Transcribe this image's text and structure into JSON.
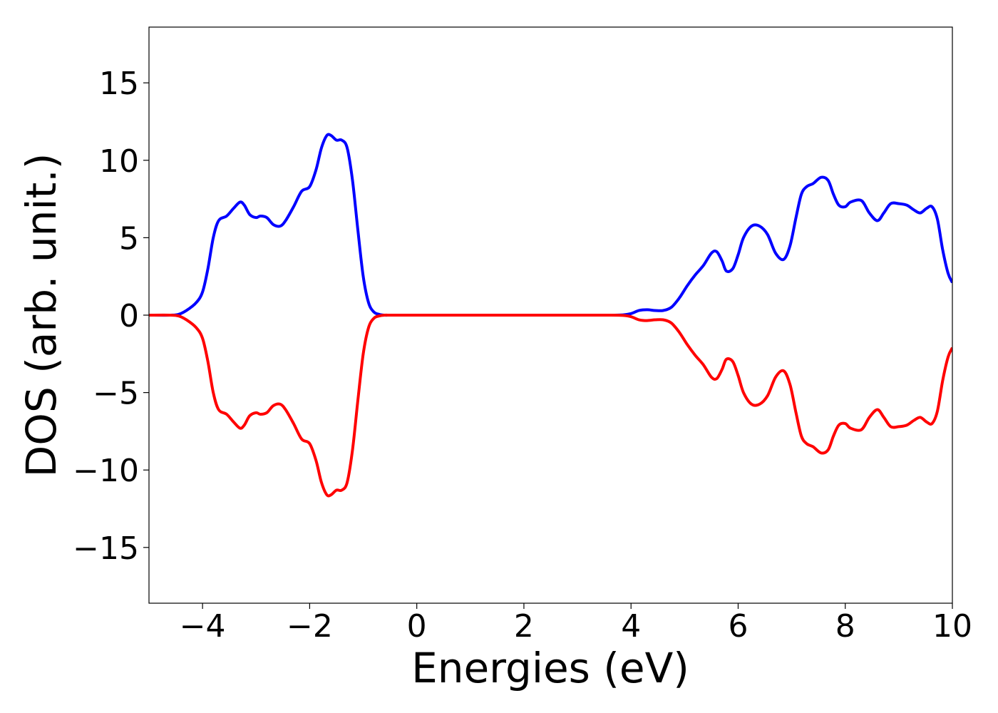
{
  "chart_data": {
    "type": "line",
    "title": "",
    "xlabel": "Energies (eV)",
    "ylabel": "DOS (arb. unit.)",
    "xlim": [
      -5,
      10
    ],
    "ylim": [
      -18.6,
      18.6
    ],
    "grid": false,
    "legend": "none",
    "xticks": [
      {
        "value": -4,
        "label": "−4"
      },
      {
        "value": -2,
        "label": "−2"
      },
      {
        "value": 0,
        "label": "0"
      },
      {
        "value": 2,
        "label": "2"
      },
      {
        "value": 4,
        "label": "4"
      },
      {
        "value": 6,
        "label": "6"
      },
      {
        "value": 8,
        "label": "8"
      },
      {
        "value": 10,
        "label": "10"
      }
    ],
    "yticks": [
      {
        "value": 15,
        "label": "15"
      },
      {
        "value": 10,
        "label": "10"
      },
      {
        "value": 5,
        "label": "5"
      },
      {
        "value": 0,
        "label": "0"
      },
      {
        "value": -5,
        "label": "−5"
      },
      {
        "value": -10,
        "label": "−10"
      },
      {
        "value": -15,
        "label": "−15"
      }
    ],
    "series": [
      {
        "color": "#0000ff",
        "x": [
          -5.0,
          -4.6,
          -4.45,
          -4.3,
          -4.12,
          -4.0,
          -3.9,
          -3.8,
          -3.7,
          -3.55,
          -3.42,
          -3.3,
          -3.22,
          -3.12,
          -3.0,
          -2.92,
          -2.8,
          -2.68,
          -2.55,
          -2.45,
          -2.3,
          -2.15,
          -2.0,
          -1.88,
          -1.78,
          -1.68,
          -1.6,
          -1.5,
          -1.4,
          -1.3,
          -1.2,
          -1.1,
          -1.0,
          -0.9,
          -0.8,
          -0.7,
          -0.6,
          -0.5,
          -0.3,
          0.0,
          1.0,
          2.0,
          3.0,
          3.6,
          3.85,
          4.0,
          4.15,
          4.3,
          4.45,
          4.6,
          4.75,
          4.9,
          5.05,
          5.2,
          5.35,
          5.5,
          5.6,
          5.7,
          5.78,
          5.9,
          6.0,
          6.1,
          6.25,
          6.4,
          6.55,
          6.7,
          6.85,
          6.97,
          7.08,
          7.18,
          7.28,
          7.4,
          7.55,
          7.68,
          7.78,
          7.88,
          8.0,
          8.1,
          8.3,
          8.45,
          8.6,
          8.72,
          8.85,
          9.0,
          9.15,
          9.28,
          9.4,
          9.52,
          9.62,
          9.72,
          9.82,
          9.92,
          10.0
        ],
        "y": [
          0.0,
          0.0,
          0.05,
          0.3,
          0.8,
          1.5,
          3.0,
          5.0,
          6.1,
          6.4,
          6.9,
          7.3,
          7.1,
          6.5,
          6.3,
          6.4,
          6.3,
          5.85,
          5.75,
          6.1,
          7.0,
          8.0,
          8.3,
          9.4,
          10.8,
          11.6,
          11.6,
          11.3,
          11.3,
          10.8,
          8.7,
          5.5,
          2.5,
          0.8,
          0.2,
          0.05,
          0.0,
          0.0,
          0.0,
          0.0,
          0.0,
          0.0,
          0.0,
          0.0,
          0.02,
          0.1,
          0.3,
          0.35,
          0.3,
          0.3,
          0.5,
          1.1,
          1.9,
          2.6,
          3.2,
          4.0,
          4.1,
          3.5,
          2.85,
          3.0,
          3.9,
          5.0,
          5.75,
          5.75,
          5.2,
          4.0,
          3.6,
          4.5,
          6.3,
          7.8,
          8.3,
          8.5,
          8.9,
          8.7,
          7.8,
          7.1,
          7.0,
          7.3,
          7.4,
          6.6,
          6.1,
          6.6,
          7.2,
          7.2,
          7.1,
          6.8,
          6.6,
          6.9,
          7.0,
          6.2,
          4.2,
          2.7,
          2.1
        ]
      },
      {
        "color": "#ff0000",
        "x": [
          -5.0,
          -4.6,
          -4.45,
          -4.3,
          -4.12,
          -4.0,
          -3.9,
          -3.8,
          -3.7,
          -3.55,
          -3.42,
          -3.3,
          -3.22,
          -3.12,
          -3.0,
          -2.92,
          -2.8,
          -2.68,
          -2.55,
          -2.45,
          -2.3,
          -2.15,
          -2.0,
          -1.88,
          -1.78,
          -1.68,
          -1.6,
          -1.5,
          -1.4,
          -1.3,
          -1.2,
          -1.1,
          -1.0,
          -0.9,
          -0.8,
          -0.7,
          -0.6,
          -0.5,
          -0.3,
          0.0,
          1.0,
          2.0,
          3.0,
          3.6,
          3.85,
          4.0,
          4.15,
          4.3,
          4.45,
          4.6,
          4.75,
          4.9,
          5.05,
          5.2,
          5.35,
          5.5,
          5.6,
          5.7,
          5.78,
          5.9,
          6.0,
          6.1,
          6.25,
          6.4,
          6.55,
          6.7,
          6.85,
          6.97,
          7.08,
          7.18,
          7.28,
          7.4,
          7.55,
          7.68,
          7.78,
          7.88,
          8.0,
          8.1,
          8.3,
          8.45,
          8.6,
          8.72,
          8.85,
          9.0,
          9.15,
          9.28,
          9.4,
          9.52,
          9.62,
          9.72,
          9.82,
          9.92,
          10.0
        ],
        "y": [
          0.0,
          0.0,
          -0.05,
          -0.3,
          -0.8,
          -1.5,
          -3.0,
          -5.0,
          -6.1,
          -6.4,
          -6.9,
          -7.3,
          -7.1,
          -6.5,
          -6.3,
          -6.4,
          -6.3,
          -5.85,
          -5.75,
          -6.1,
          -7.0,
          -8.0,
          -8.3,
          -9.4,
          -10.8,
          -11.6,
          -11.6,
          -11.3,
          -11.3,
          -10.8,
          -8.7,
          -5.5,
          -2.5,
          -0.8,
          -0.2,
          -0.05,
          0.0,
          0.0,
          0.0,
          0.0,
          0.0,
          0.0,
          0.0,
          0.0,
          -0.02,
          -0.1,
          -0.3,
          -0.35,
          -0.3,
          -0.3,
          -0.5,
          -1.1,
          -1.9,
          -2.6,
          -3.2,
          -4.0,
          -4.1,
          -3.5,
          -2.85,
          -3.0,
          -3.9,
          -5.0,
          -5.75,
          -5.75,
          -5.2,
          -4.0,
          -3.6,
          -4.5,
          -6.3,
          -7.8,
          -8.3,
          -8.5,
          -8.9,
          -8.7,
          -7.8,
          -7.1,
          -7.0,
          -7.3,
          -7.4,
          -6.6,
          -6.1,
          -6.6,
          -7.2,
          -7.2,
          -7.1,
          -6.8,
          -6.6,
          -6.9,
          -7.0,
          -6.2,
          -4.2,
          -2.7,
          -2.1
        ]
      }
    ]
  }
}
